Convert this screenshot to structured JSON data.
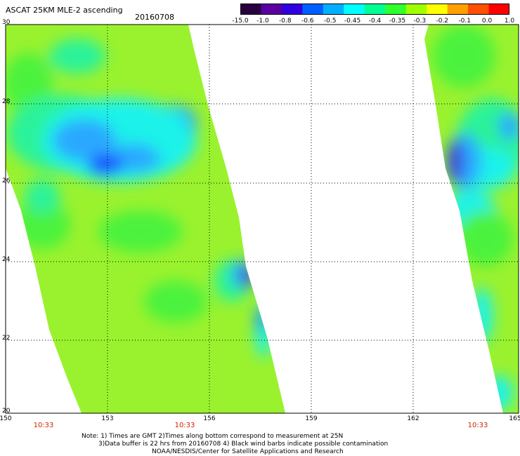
{
  "title": "ASCAT 25KM MLE-2 ascending",
  "date": "20160708",
  "colorbar": {
    "labels": [
      "-15.0",
      "-1.0",
      "-0.8",
      "-0.6",
      "-0.5",
      "-0.45",
      "-0.4",
      "-0.35",
      "-0.3",
      "-0.2",
      "-0.1",
      "0.0",
      "1.0"
    ],
    "colors": [
      "#2a0040",
      "#5a00a0",
      "#3000e0",
      "#0060ff",
      "#00b0ff",
      "#00ffff",
      "#00ff90",
      "#30ff30",
      "#a0ff00",
      "#ffff00",
      "#ffa000",
      "#ff5000",
      "#ff0000"
    ]
  },
  "axes": {
    "lat_labels": [
      "30",
      "28",
      "26",
      "24",
      "22",
      "20"
    ],
    "lon_labels": [
      "150",
      "153",
      "156",
      "159",
      "162",
      "165"
    ],
    "time_labels": [
      "10:33",
      "10:33",
      "10:33"
    ]
  },
  "note": {
    "line1": "Note: 1) Times are GMT 2)Times along bottom correspond to measurement at 25N",
    "line2": "3)Data buffer is 22 hrs from 20160708 4) Black wind barbs indicate possible contamination",
    "line3": "NOAA/NESDIS/Center for Satellite Applications and Research"
  },
  "swath_colors": {
    "base": "#9af22e",
    "green": "#4cf23c",
    "aqua": "#2cf29a",
    "cyan": "#1cf2ea",
    "sky": "#2aa8ff",
    "blue": "#1a4cff",
    "purple": "#3c10d8"
  }
}
